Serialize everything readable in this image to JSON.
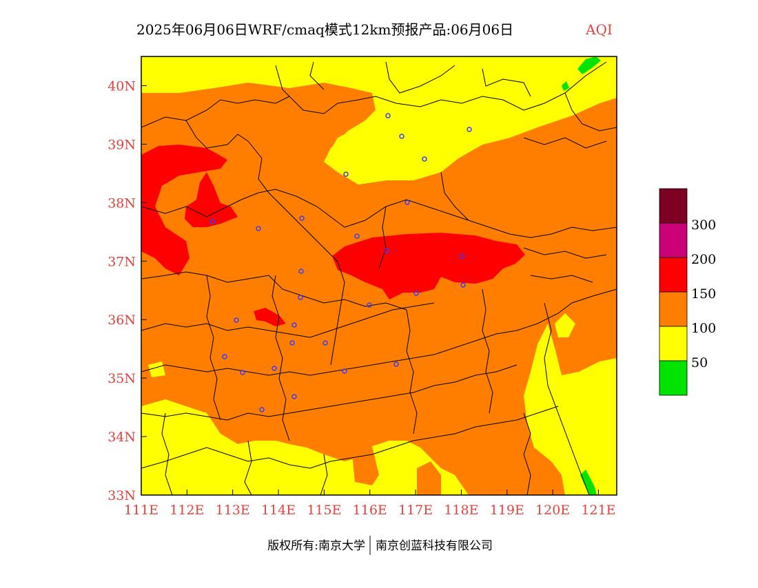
{
  "title": "2025年06月06日WRF/cmaq模式12km预报产品:06月06日",
  "product": "AQI",
  "footer": {
    "left": "版权所有:南京大学",
    "right": "南京创蓝科技有限公司"
  },
  "colors": {
    "label": "#e8403c",
    "aqi_0_50": "#00e400",
    "aqi_50_100": "#ffff00",
    "aqi_100_150": "#ff7e00",
    "aqi_150_200": "#ff0000",
    "aqi_200_300": "#cc0077",
    "aqi_300_plus": "#7e0023",
    "city_marker": "#3b3bff"
  },
  "map": {
    "lon_ticks": [
      "111E",
      "112E",
      "113E",
      "114E",
      "115E",
      "116E",
      "117E",
      "118E",
      "119E",
      "120E",
      "121E"
    ],
    "lat_ticks": [
      "33N",
      "34N",
      "35N",
      "36N",
      "37N",
      "38N",
      "39N",
      "40N"
    ],
    "lon_range": [
      111,
      121.4
    ],
    "lat_range": [
      33,
      40.5
    ]
  },
  "legend": {
    "labels": [
      "50",
      "100",
      "150",
      "200",
      "300"
    ]
  }
}
